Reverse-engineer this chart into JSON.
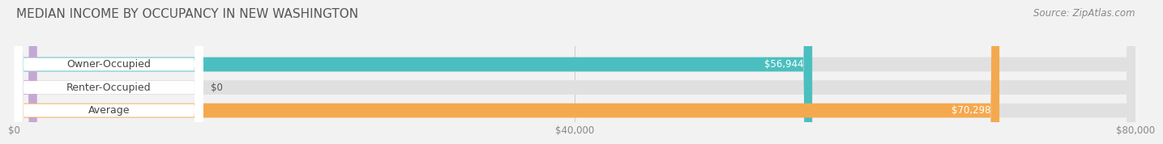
{
  "title": "MEDIAN INCOME BY OCCUPANCY IN NEW WASHINGTON",
  "source": "Source: ZipAtlas.com",
  "categories": [
    "Owner-Occupied",
    "Renter-Occupied",
    "Average"
  ],
  "values": [
    56944,
    0,
    70298
  ],
  "bar_colors": [
    "#4BBFC0",
    "#C4A8D4",
    "#F5A94E"
  ],
  "bar_labels": [
    "$56,944",
    "$0",
    "$70,298"
  ],
  "xlim": [
    0,
    80000
  ],
  "xticks": [
    0,
    40000,
    80000
  ],
  "xtick_labels": [
    "$0",
    "$40,000",
    "$80,000"
  ],
  "background_color": "#f2f2f2",
  "bar_bg_color": "#e0e0e0",
  "title_fontsize": 11,
  "source_fontsize": 8.5,
  "label_fontsize": 9,
  "value_fontsize": 8.5
}
